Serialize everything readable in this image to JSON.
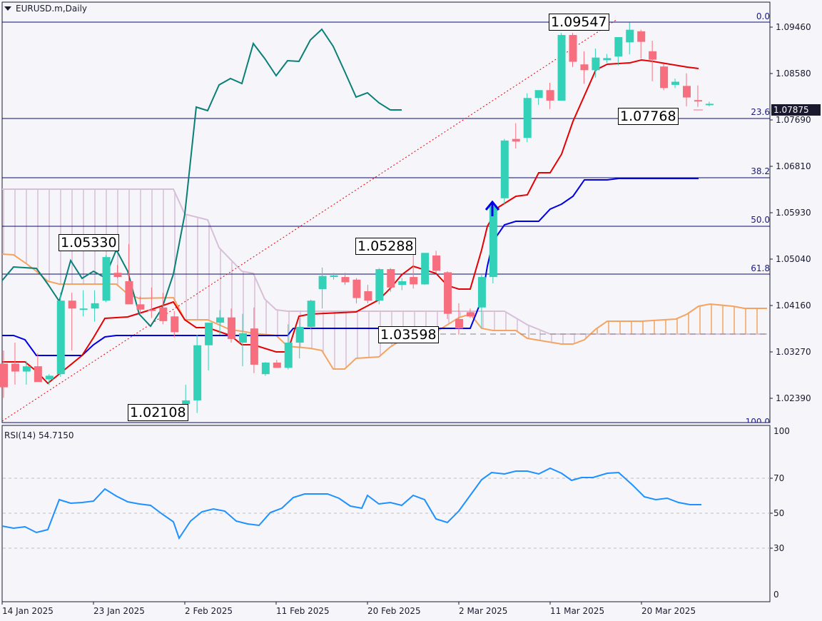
{
  "header": {
    "symbol_title": "EURUSD.m,Daily"
  },
  "rsi_panel": {
    "label": "RSI(14) 54.7150"
  },
  "price_axis": {
    "labels": [
      "1.09460",
      "1.08580",
      "1.07690",
      "1.06810",
      "1.05930",
      "1.05040",
      "1.04160",
      "1.03270",
      "1.02390"
    ],
    "current_price": "1.07875"
  },
  "rsi_axis": {
    "labels": [
      "100",
      "70",
      "50",
      "30",
      "0"
    ]
  },
  "time_axis": {
    "labels": [
      "14 Jan 2025",
      "23 Jan 2025",
      "2 Feb 2025",
      "11 Feb 2025",
      "20 Feb 2025",
      "2 Mar 2025",
      "11 Mar 2025",
      "20 Mar 2025"
    ]
  },
  "fibonacci": {
    "levels": [
      "0.0",
      "23.6",
      "38.2",
      "50.0",
      "61.8",
      "100.0"
    ]
  },
  "annotations": {
    "high": "1.09547",
    "low": "1.02108",
    "swing_high_1": "1.05330",
    "swing_high_2": "1.05288",
    "swing_low": "1.03598",
    "recent_low": "1.07768"
  },
  "colors": {
    "bull": "#33d1b8",
    "bear": "#f76e7e",
    "tenkan": "#e60000",
    "kijun": "#0000e6",
    "chikou": "#0a7f78",
    "span_a": "#f4a460",
    "span_b": "#d8bfd8",
    "rsi": "#1e90ff",
    "fib": "#0b0b6e"
  },
  "chart_data": [
    {
      "type": "candlestick",
      "title": "EURUSD.m,Daily",
      "indicators": [
        "Ichimoku Kinko Hyo",
        "Fibonacci Retracement"
      ],
      "ylim": [
        1.02,
        1.0975
      ],
      "y_ticks": [
        1.0946,
        1.0858,
        1.0769,
        1.0681,
        1.0593,
        1.0504,
        1.0416,
        1.0327,
        1.0239
      ],
      "x_ticks": [
        "14 Jan 2025",
        "23 Jan 2025",
        "2 Feb 2025",
        "11 Feb 2025",
        "20 Feb 2025",
        "2 Mar 2025",
        "11 Mar 2025",
        "20 Mar 2025"
      ],
      "current_price": 1.07875,
      "fib_levels": {
        "0.0": 1.09547,
        "23.6": 1.07791,
        "38.2": 1.06705,
        "50.0": 1.05828,
        "61.8": 1.0495,
        "100.0": 1.02108
      },
      "labels": {
        "1.09547": "high",
        "1.02108": "low",
        "1.05330": "swing high",
        "1.05288": "swing high",
        "1.03598": "swing low",
        "1.07768": "recent low"
      },
      "candles": [
        {
          "o": 1.0305,
          "h": 1.033,
          "l": 1.024,
          "c": 1.026
        },
        {
          "o": 1.0305,
          "h": 1.0345,
          "l": 1.0265,
          "c": 1.029
        },
        {
          "o": 1.029,
          "h": 1.031,
          "l": 1.0265,
          "c": 1.03
        },
        {
          "o": 1.03,
          "h": 1.0325,
          "l": 1.027,
          "c": 1.027
        },
        {
          "o": 1.0275,
          "h": 1.0285,
          "l": 1.0265,
          "c": 1.0282
        },
        {
          "o": 1.0285,
          "h": 1.044,
          "l": 1.028,
          "c": 1.0425
        },
        {
          "o": 1.0425,
          "h": 1.044,
          "l": 1.033,
          "c": 1.041
        },
        {
          "o": 1.041,
          "h": 1.0445,
          "l": 1.0395,
          "c": 1.041
        },
        {
          "o": 1.041,
          "h": 1.0445,
          "l": 1.0385,
          "c": 1.042
        },
        {
          "o": 1.0425,
          "h": 1.0512,
          "l": 1.0422,
          "c": 1.0508
        },
        {
          "o": 1.0478,
          "h": 1.0493,
          "l": 1.0468,
          "c": 1.047
        },
        {
          "o": 1.0462,
          "h": 1.0533,
          "l": 1.0425,
          "c": 1.0418
        },
        {
          "o": 1.0418,
          "h": 1.0433,
          "l": 1.04,
          "c": 1.0408
        },
        {
          "o": 1.0408,
          "h": 1.045,
          "l": 1.0392,
          "c": 1.0406
        },
        {
          "o": 1.0412,
          "h": 1.044,
          "l": 1.038,
          "c": 1.0386
        },
        {
          "o": 1.0395,
          "h": 1.0405,
          "l": 1.0355,
          "c": 1.0365
        },
        {
          "o": 1.0228,
          "h": 1.0265,
          "l": 1.0215,
          "c": 1.0235
        },
        {
          "o": 1.0235,
          "h": 1.036,
          "l": 1.0211,
          "c": 1.034
        },
        {
          "o": 1.034,
          "h": 1.038,
          "l": 1.0292,
          "c": 1.0383
        },
        {
          "o": 1.0383,
          "h": 1.0407,
          "l": 1.036,
          "c": 1.0393
        },
        {
          "o": 1.0393,
          "h": 1.041,
          "l": 1.0345,
          "c": 1.0352
        },
        {
          "o": 1.0345,
          "h": 1.04,
          "l": 1.03,
          "c": 1.0363
        },
        {
          "o": 1.0372,
          "h": 1.0412,
          "l": 1.0287,
          "c": 1.0303
        },
        {
          "o": 1.0285,
          "h": 1.0308,
          "l": 1.0282,
          "c": 1.0307
        },
        {
          "o": 1.0307,
          "h": 1.0312,
          "l": 1.0297,
          "c": 1.0297
        },
        {
          "o": 1.0297,
          "h": 1.038,
          "l": 1.0294,
          "c": 1.0345
        },
        {
          "o": 1.0345,
          "h": 1.0392,
          "l": 1.0315,
          "c": 1.0375
        },
        {
          "o": 1.0375,
          "h": 1.0427,
          "l": 1.037,
          "c": 1.0425
        },
        {
          "o": 1.0447,
          "h": 1.0488,
          "l": 1.041,
          "c": 1.0472
        },
        {
          "o": 1.047,
          "h": 1.0478,
          "l": 1.0465,
          "c": 1.0473
        },
        {
          "o": 1.047,
          "h": 1.0478,
          "l": 1.0455,
          "c": 1.046
        },
        {
          "o": 1.0465,
          "h": 1.0468,
          "l": 1.042,
          "c": 1.043
        },
        {
          "o": 1.0443,
          "h": 1.0455,
          "l": 1.042,
          "c": 1.0425
        },
        {
          "o": 1.0425,
          "h": 1.0487,
          "l": 1.0418,
          "c": 1.0485
        },
        {
          "o": 1.0485,
          "h": 1.0487,
          "l": 1.0442,
          "c": 1.045
        },
        {
          "o": 1.0455,
          "h": 1.0468,
          "l": 1.0445,
          "c": 1.0462
        },
        {
          "o": 1.047,
          "h": 1.0529,
          "l": 1.0448,
          "c": 1.0456
        },
        {
          "o": 1.0456,
          "h": 1.0515,
          "l": 1.0455,
          "c": 1.0516
        },
        {
          "o": 1.0511,
          "h": 1.052,
          "l": 1.0478,
          "c": 1.0482
        },
        {
          "o": 1.0479,
          "h": 1.0481,
          "l": 1.039,
          "c": 1.04
        },
        {
          "o": 1.039,
          "h": 1.042,
          "l": 1.036,
          "c": 1.0372
        },
        {
          "o": 1.0403,
          "h": 1.041,
          "l": 1.0392,
          "c": 1.0395
        },
        {
          "o": 1.0412,
          "h": 1.0474,
          "l": 1.0373,
          "c": 1.047
        },
        {
          "o": 1.047,
          "h": 1.0605,
          "l": 1.0458,
          "c": 1.0605
        },
        {
          "o": 1.062,
          "h": 1.0733,
          "l": 1.0609,
          "c": 1.073
        },
        {
          "o": 1.0733,
          "h": 1.0763,
          "l": 1.0715,
          "c": 1.0728
        },
        {
          "o": 1.0735,
          "h": 1.082,
          "l": 1.0727,
          "c": 1.0811
        },
        {
          "o": 1.0811,
          "h": 1.0825,
          "l": 1.0798,
          "c": 1.0826
        },
        {
          "o": 1.0826,
          "h": 1.084,
          "l": 1.079,
          "c": 1.0806
        },
        {
          "o": 1.0806,
          "h": 1.0935,
          "l": 1.0806,
          "c": 1.0931
        },
        {
          "o": 1.0931,
          "h": 1.0935,
          "l": 1.087,
          "c": 1.088
        },
        {
          "o": 1.0875,
          "h": 1.09,
          "l": 1.0838,
          "c": 1.0864
        },
        {
          "o": 1.0864,
          "h": 1.0905,
          "l": 1.085,
          "c": 1.0888
        },
        {
          "o": 1.0883,
          "h": 1.0895,
          "l": 1.0878,
          "c": 1.0887
        },
        {
          "o": 1.089,
          "h": 1.0917,
          "l": 1.0873,
          "c": 1.0927
        },
        {
          "o": 1.0917,
          "h": 1.0955,
          "l": 1.0894,
          "c": 1.0941
        },
        {
          "o": 1.0938,
          "h": 1.0941,
          "l": 1.0886,
          "c": 1.0918
        },
        {
          "o": 1.09,
          "h": 1.092,
          "l": 1.0843,
          "c": 1.0884
        },
        {
          "o": 1.0871,
          "h": 1.0876,
          "l": 1.0826,
          "c": 1.083
        },
        {
          "o": 1.0836,
          "h": 1.0848,
          "l": 1.083,
          "c": 1.0842
        },
        {
          "o": 1.0834,
          "h": 1.0858,
          "l": 1.0795,
          "c": 1.0812
        },
        {
          "o": 1.0807,
          "h": 1.0835,
          "l": 1.0794,
          "c": 1.0806
        },
        {
          "o": 1.08,
          "h": 1.0804,
          "l": 1.0795,
          "c": 1.08
        }
      ],
      "rsi": {
        "label": "RSI(14) 54.7150",
        "levels": [
          70,
          50,
          30
        ],
        "ylim": [
          0,
          100
        ],
        "last": 54.715
      }
    }
  ]
}
